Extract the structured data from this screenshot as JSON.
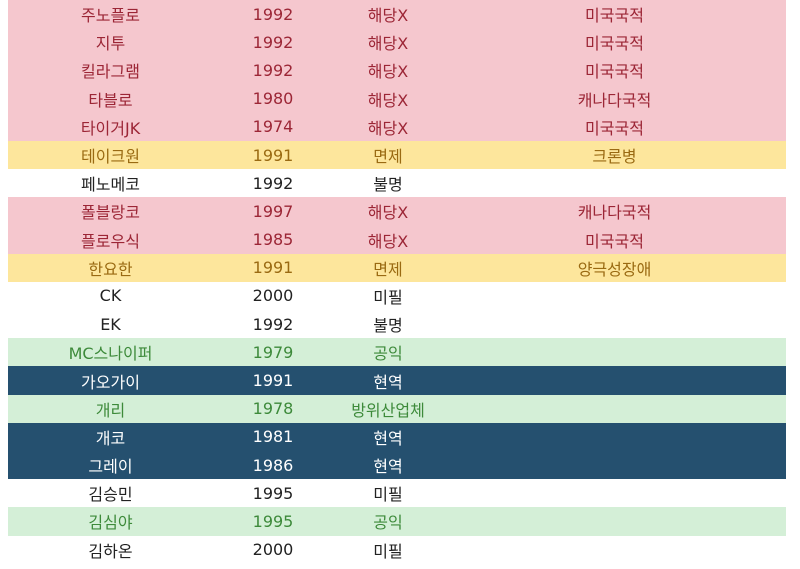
{
  "colors": {
    "pink": "#f5c7ce",
    "yellow": "#fde69c",
    "green": "#d4efd7",
    "navy": "#25506f"
  },
  "rows": [
    {
      "name": "주노플로",
      "year": "1992",
      "status": "해당X",
      "note": "미국국적",
      "style": "pink"
    },
    {
      "name": "지투",
      "year": "1992",
      "status": "해당X",
      "note": "미국국적",
      "style": "pink"
    },
    {
      "name": "킬라그램",
      "year": "1992",
      "status": "해당X",
      "note": "미국국적",
      "style": "pink"
    },
    {
      "name": "타블로",
      "year": "1980",
      "status": "해당X",
      "note": "캐나다국적",
      "style": "pink"
    },
    {
      "name": "타이거JK",
      "year": "1974",
      "status": "해당X",
      "note": "미국국적",
      "style": "pink"
    },
    {
      "name": "테이크원",
      "year": "1991",
      "status": "면제",
      "note": "크론병",
      "style": "yellow"
    },
    {
      "name": "페노메코",
      "year": "1992",
      "status": "불명",
      "note": "",
      "style": "plain"
    },
    {
      "name": "폴블랑코",
      "year": "1997",
      "status": "해당X",
      "note": "캐나다국적",
      "style": "pink"
    },
    {
      "name": "플로우식",
      "year": "1985",
      "status": "해당X",
      "note": "미국국적",
      "style": "pink"
    },
    {
      "name": "한요한",
      "year": "1991",
      "status": "면제",
      "note": "양극성장애",
      "style": "yellow"
    },
    {
      "name": "CK",
      "year": "2000",
      "status": "미필",
      "note": "",
      "style": "plain"
    },
    {
      "name": "EK",
      "year": "1992",
      "status": "불명",
      "note": "",
      "style": "plain"
    },
    {
      "name": "MC스나이퍼",
      "year": "1979",
      "status": "공익",
      "note": "",
      "style": "green"
    },
    {
      "name": "가오가이",
      "year": "1991",
      "status": "현역",
      "note": "",
      "style": "navy"
    },
    {
      "name": "개리",
      "year": "1978",
      "status": "방위산업체",
      "note": "",
      "style": "green"
    },
    {
      "name": "개코",
      "year": "1981",
      "status": "현역",
      "note": "",
      "style": "navy"
    },
    {
      "name": "그레이",
      "year": "1986",
      "status": "현역",
      "note": "",
      "style": "navy"
    },
    {
      "name": "김승민",
      "year": "1995",
      "status": "미필",
      "note": "",
      "style": "plain"
    },
    {
      "name": "김심야",
      "year": "1995",
      "status": "공익",
      "note": "",
      "style": "green"
    },
    {
      "name": "김하온",
      "year": "2000",
      "status": "미필",
      "note": "",
      "style": "plain"
    }
  ]
}
